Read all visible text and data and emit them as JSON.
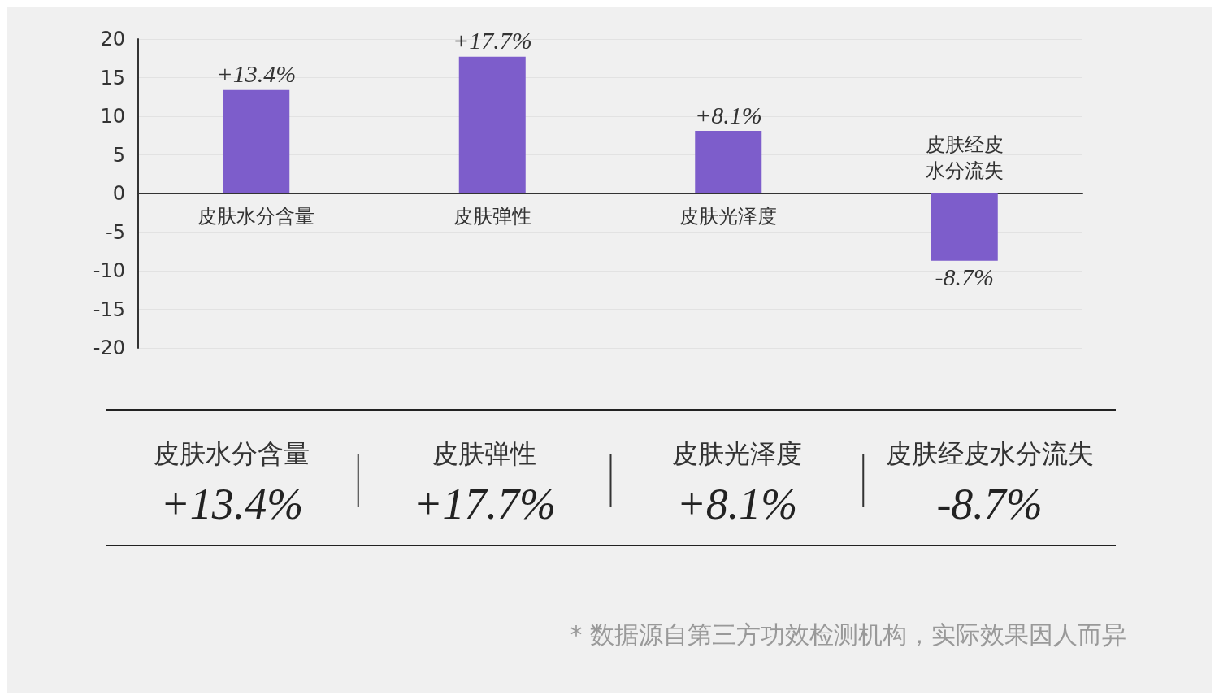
{
  "chart_data": {
    "type": "bar",
    "categories": [
      "皮肤水分含量",
      "皮肤弹性",
      "皮肤光泽度",
      "皮肤经皮水分流失"
    ],
    "values": [
      13.4,
      17.7,
      8.1,
      -8.7
    ],
    "value_labels": [
      "+13.4%",
      "+17.7%",
      "+8.1%",
      "-8.7%"
    ],
    "color": "#7d5dcb",
    "ylim": [
      -20,
      20
    ],
    "yticks": [
      -20,
      -15,
      -10,
      -5,
      0,
      5,
      10,
      15,
      20
    ],
    "grid": "y",
    "annotations": [
      "* 数据源自第三方功效检测机构，实际效果因人而异"
    ]
  }
}
